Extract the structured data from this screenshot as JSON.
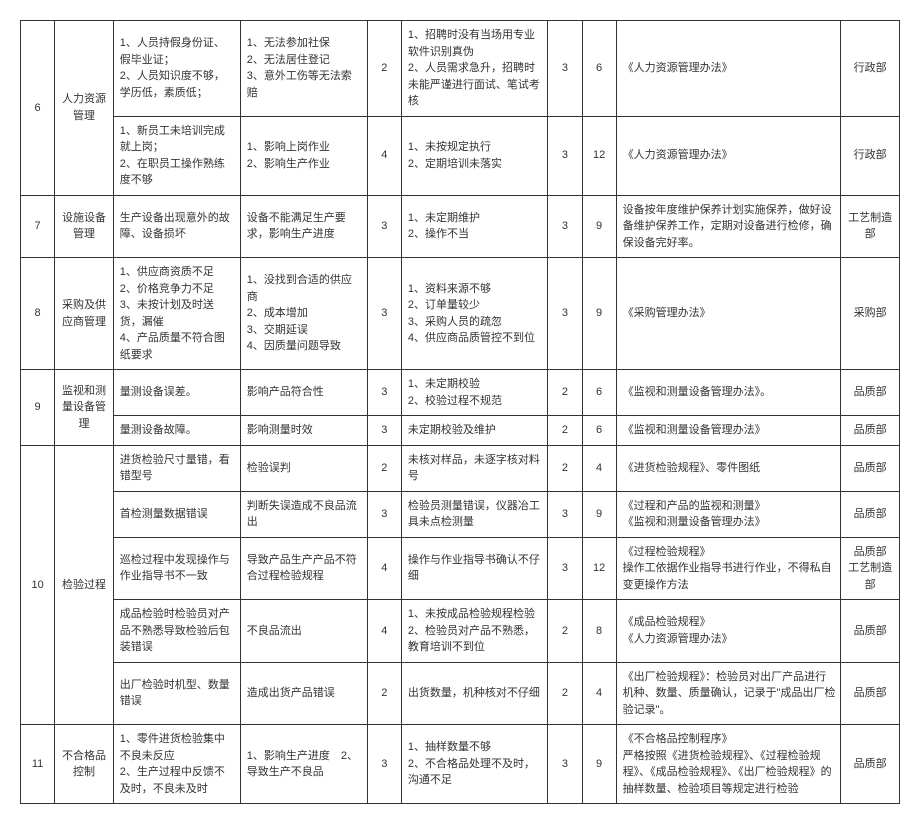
{
  "columns": {
    "widths": [
      3.5,
      6,
      13,
      13,
      3.5,
      15,
      3.5,
      3.5,
      23,
      6
    ]
  },
  "rows": [
    {
      "id": 6,
      "cat": "人力资源管理",
      "sub": [
        {
          "c3": "1、人员持假身份证、假毕业证；\n2、人员知识度不够，学历低，素质低；",
          "c4": "1、无法参加社保\n2、无法居住登记\n3、意外工伤等无法索赔",
          "c5": "2",
          "c6": "1、招聘时没有当场用专业软件识别真伪\n2、人员需求急升，招聘时未能严谨进行面试、笔试考核",
          "c7": "3",
          "c8": "6",
          "c9": "《人力资源管理办法》",
          "c10": "行政部"
        },
        {
          "c3": "1、新员工未培训完成就上岗；\n2、在职员工操作熟练度不够",
          "c4": "1、影响上岗作业\n2、影响生产作业",
          "c5": "4",
          "c6": "1、未按规定执行\n2、定期培训未落实",
          "c7": "3",
          "c8": "12",
          "c9": "《人力资源管理办法》",
          "c10": "行政部"
        }
      ]
    },
    {
      "id": 7,
      "cat": "设施设备管理",
      "sub": [
        {
          "c3": "生产设备出现意外的故障、设备损坏",
          "c4": "设备不能满足生产要求，影响生产进度",
          "c5": "3",
          "c6": "1、未定期维护\n2、操作不当",
          "c7": "3",
          "c8": "9",
          "c9": "设备按年度维护保养计划实施保养，做好设备维护保养工作，定期对设备进行检修，确保设备完好率。",
          "c10": "工艺制造部"
        }
      ]
    },
    {
      "id": 8,
      "cat": "采购及供应商管理",
      "sub": [
        {
          "c3": "1、供应商资质不足\n2、价格竞争力不足\n3、未按计划及时送货，漏催\n4、产品质量不符合图纸要求",
          "c4": "1、没找到合适的供应商\n2、成本增加\n3、交期延误\n4、因质量问题导致",
          "c5": "3",
          "c6": "1、资料来源不够\n2、订单量较少\n3、采购人员的疏忽\n4、供应商品质管控不到位",
          "c7": "3",
          "c8": "9",
          "c9": "《采购管理办法》",
          "c10": "采购部"
        }
      ]
    },
    {
      "id": 9,
      "cat": "监视和测量设备管理",
      "sub": [
        {
          "c3": "量测设备误差。",
          "c4": "影响产品符合性",
          "c5": "3",
          "c6": "1、未定期校验\n2、校验过程不规范",
          "c7": "2",
          "c8": "6",
          "c9": "《监视和测量设备管理办法》。",
          "c10": "品质部"
        },
        {
          "c3": "量测设备故障。",
          "c4": "影响测量时效",
          "c5": "3",
          "c6": "未定期校验及维护",
          "c7": "2",
          "c8": "6",
          "c9": "《监视和测量设备管理办法》",
          "c10": "品质部"
        }
      ]
    },
    {
      "id": 10,
      "cat": "检验过程",
      "sub": [
        {
          "c3": "进货检验尺寸量错，看错型号",
          "c4": "检验误判",
          "c5": "2",
          "c6": "未核对样品，未逐字核对料号",
          "c7": "2",
          "c8": "4",
          "c9": "《进货检验规程》、零件图纸",
          "c10": "品质部"
        },
        {
          "c3": "首检测量数据错误",
          "c4": "判断失误造成不良品流出",
          "c5": "3",
          "c6": "检验员测量错误，仪器冶工具未点检测量",
          "c7": "3",
          "c8": "9",
          "c9": "《过程和产品的监视和测量》\n《监视和测量设备管理办法》",
          "c10": "品质部"
        },
        {
          "c3": "巡检过程中发现操作与作业指导书不一致",
          "c4": "导致产品生产产品不符合过程检验规程",
          "c5": "4",
          "c6": "操作与作业指导书确认不仔细",
          "c7": "3",
          "c8": "12",
          "c9": "《过程检验规程》\n操作工依据作业指导书进行作业，不得私自变更操作方法",
          "c10": "品质部\n工艺制造部"
        },
        {
          "c3": "成品检验时检验员对产品不熟悉导致检验后包装错误",
          "c4": "不良品流出",
          "c5": "4",
          "c6": "1、未按成品检验规程检验\n2、检验员对产品不熟悉，教育培训不到位",
          "c7": "2",
          "c8": "8",
          "c9": "《成品检验规程》\n《人力资源管理办法》",
          "c10": "品质部"
        },
        {
          "c3": "出厂检验时机型、数量错误",
          "c4": "造成出货产品错误",
          "c5": "2",
          "c6": "出货数量，机种核对不仔细",
          "c7": "2",
          "c8": "4",
          "c9": "《出厂检验规程》：检验员对出厂产品进行机种、数量、质量确认，记录于\"成品出厂检验记录\"。",
          "c10": "品质部"
        }
      ]
    },
    {
      "id": 11,
      "cat": "不合格品控制",
      "sub": [
        {
          "c3": "1、零件进货检验集中不良未反应\n2、生产过程中反馈不及时，不良未及时",
          "c4": "1、影响生产进度　2、导致生产不良品",
          "c5": "3",
          "c6": "1、抽样数量不够\n2、不合格品处理不及时，沟通不足",
          "c7": "3",
          "c8": "9",
          "c9": "《不合格品控制程序》\n严格按照《进货检验规程》、《过程检验规程》、《成品检验规程》、《出厂检验规程》的抽样数量、检验项目等规定进行检验",
          "c10": "品质部"
        }
      ]
    }
  ]
}
